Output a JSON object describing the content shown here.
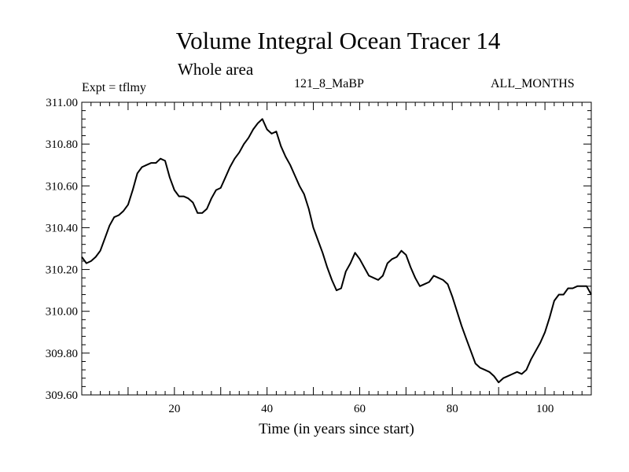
{
  "chart_data": {
    "type": "line",
    "title": "Volume Integral Ocean Tracer 14",
    "subtitle": "Whole area",
    "annotations": {
      "experiment": "Expt = tflmy",
      "run": "121_8_MaBP",
      "season": "ALL_MONTHS"
    },
    "xlabel": "Time (in years since start)",
    "ylabel": "",
    "xlim": [
      0,
      110
    ],
    "ylim": [
      309.6,
      311.0
    ],
    "x_ticks": [
      20,
      40,
      60,
      80,
      100
    ],
    "x_tick_labels": [
      "20",
      "40",
      "60",
      "80",
      "100"
    ],
    "y_ticks": [
      309.6,
      309.8,
      310.0,
      310.2,
      310.4,
      310.6,
      310.8,
      311.0
    ],
    "y_tick_labels": [
      "309.60",
      "309.80",
      "310.00",
      "310.20",
      "310.40",
      "310.60",
      "310.80",
      "311.00"
    ],
    "grid": false,
    "line_color": "#000000",
    "series": [
      {
        "x": [
          0,
          1,
          2,
          3,
          4,
          5,
          6,
          7,
          8,
          9,
          10,
          11,
          12,
          13,
          14,
          15,
          16,
          17,
          18,
          19,
          20,
          21,
          22,
          23,
          24,
          25,
          26,
          27,
          28,
          29,
          30,
          31,
          32,
          33,
          34,
          35,
          36,
          37,
          38,
          39,
          40,
          41,
          42,
          43,
          44,
          45,
          46,
          47,
          48,
          49,
          50,
          51,
          52,
          53,
          54,
          55,
          56,
          57,
          58,
          59,
          60,
          61,
          62,
          63,
          64,
          65,
          66,
          67,
          68,
          69,
          70,
          71,
          72,
          73,
          74,
          75,
          76,
          77,
          78,
          79,
          80,
          81,
          82,
          83,
          84,
          85,
          86,
          87,
          88,
          89,
          90,
          91,
          92,
          93,
          94,
          95,
          96,
          97,
          98,
          99,
          100,
          101,
          102,
          103,
          104,
          105,
          106,
          107,
          108,
          109,
          110
        ],
        "values": [
          310.26,
          310.23,
          310.24,
          310.26,
          310.29,
          310.35,
          310.41,
          310.45,
          310.46,
          310.48,
          310.51,
          310.58,
          310.66,
          310.69,
          310.7,
          310.71,
          310.71,
          310.73,
          310.72,
          310.64,
          310.58,
          310.55,
          310.55,
          310.54,
          310.52,
          310.47,
          310.47,
          310.49,
          310.54,
          310.58,
          310.59,
          310.64,
          310.69,
          310.73,
          310.76,
          310.8,
          310.83,
          310.87,
          310.9,
          310.92,
          310.87,
          310.85,
          310.86,
          310.79,
          310.74,
          310.7,
          310.65,
          310.6,
          310.56,
          310.49,
          310.4,
          310.34,
          310.28,
          310.21,
          310.15,
          310.1,
          310.11,
          310.19,
          310.23,
          310.28,
          310.25,
          310.21,
          310.17,
          310.16,
          310.15,
          310.17,
          310.23,
          310.25,
          310.26,
          310.29,
          310.27,
          310.21,
          310.16,
          310.12,
          310.13,
          310.14,
          310.17,
          310.16,
          310.15,
          310.13,
          310.07,
          310.0,
          309.93,
          309.87,
          309.81,
          309.75,
          309.73,
          309.72,
          309.71,
          309.69,
          309.66,
          309.68,
          309.69,
          309.7,
          309.71,
          309.7,
          309.72,
          309.77,
          309.81,
          309.85,
          309.9,
          309.97,
          310.05,
          310.08,
          310.08,
          310.11,
          310.11,
          310.12,
          310.12,
          310.12,
          310.08
        ]
      }
    ]
  }
}
